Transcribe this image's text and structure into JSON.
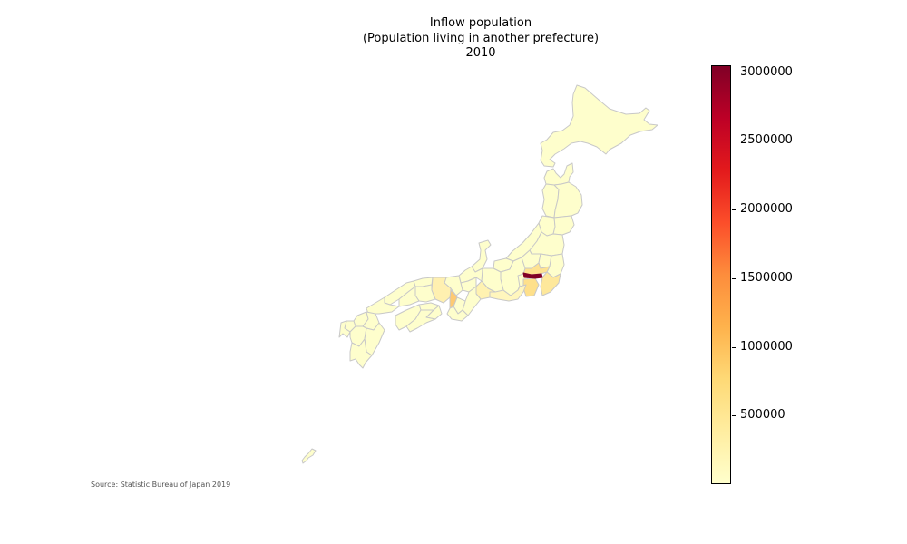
{
  "map": {
    "title_lines": [
      "Inflow population",
      "(Population living in another prefecture)",
      "2010"
    ],
    "source": "Source: Statistic Bureau of Japan 2019",
    "colormap": "YlOrRd",
    "colorbar": {
      "min": 0,
      "max": 3050000,
      "ticks": [
        {
          "value": 500000,
          "label": "500000"
        },
        {
          "value": 1000000,
          "label": "1000000"
        },
        {
          "value": 1500000,
          "label": "1500000"
        },
        {
          "value": 2000000,
          "label": "2000000"
        },
        {
          "value": 2500000,
          "label": "2500000"
        },
        {
          "value": 3000000,
          "label": "3000000"
        }
      ],
      "gradient_colors": [
        "#ffffcc",
        "#ffeda0",
        "#fed976",
        "#feb24c",
        "#fd8d3c",
        "#fc4e2a",
        "#e31a1c",
        "#bd0026",
        "#800026"
      ]
    },
    "region_colors": {
      "base_fill": "#fefecc",
      "border": "#c8c8c8",
      "tokyo": "#800026",
      "kanagawa": "#fee08b",
      "osaka": "#feca72",
      "saitama": "#fee291",
      "chiba": "#fee89b",
      "light_orange": "#fff0b0"
    }
  }
}
